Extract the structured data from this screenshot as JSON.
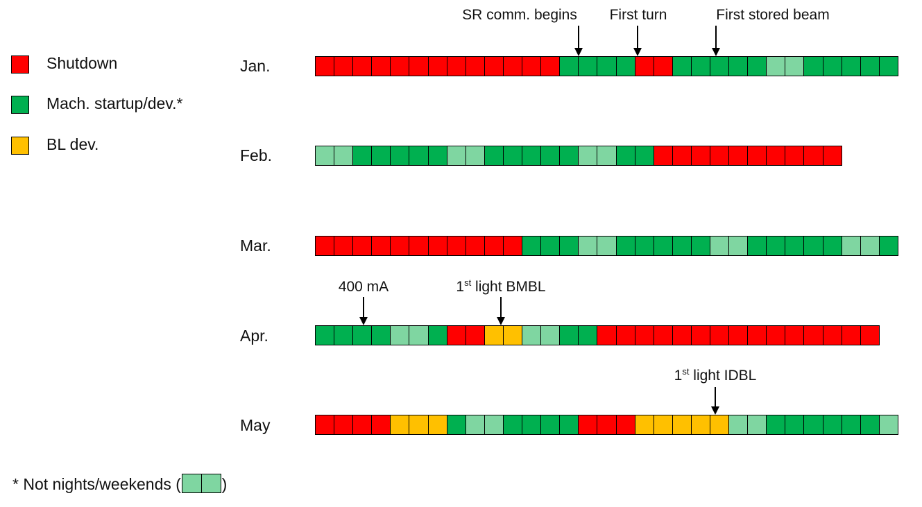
{
  "legend": [
    {
      "label": "Shutdown",
      "color": "#ff0000"
    },
    {
      "label": "Mach. startup/dev.*",
      "color": "#00b050"
    },
    {
      "label": "BL dev.",
      "color": "#ffc000"
    }
  ],
  "colors": {
    "S": "#ff0000",
    "G": "#00b050",
    "L": "#7fd6a1",
    "Y": "#ffc000"
  },
  "months": [
    {
      "label": "Jan.",
      "days": "SSSSSSSSSSSSSGGGGSSGGGGGLLGGGGG"
    },
    {
      "label": "Feb.",
      "days": "LLGGGGGLLGGGGGLLGGSSSSSSSSSS"
    },
    {
      "label": "Mar.",
      "days": "SSSSSSSSSSSGGGLLGGGGGLLGGGGGLLG"
    },
    {
      "label": "Apr.",
      "days": "GGGGLLGSSYYLLGGSSSSSSSSSSSSSSS"
    },
    {
      "label": "May",
      "days": "SSSSYYYGLLGGGGSSSYYYYYLLGGGGGGL"
    }
  ],
  "annotations": [
    {
      "text": "SR comm. begins"
    },
    {
      "text": "First turn"
    },
    {
      "text": "First stored beam"
    },
    {
      "text": "400 mA"
    },
    {
      "pre": "1",
      "sup": "st",
      "post": " light BMBL"
    },
    {
      "pre": "1",
      "sup": "st",
      "post": " light IDBL"
    }
  ],
  "footnote": {
    "prefix": "* Not nights/weekends (",
    "suffix": ")",
    "swatch": "LL"
  }
}
